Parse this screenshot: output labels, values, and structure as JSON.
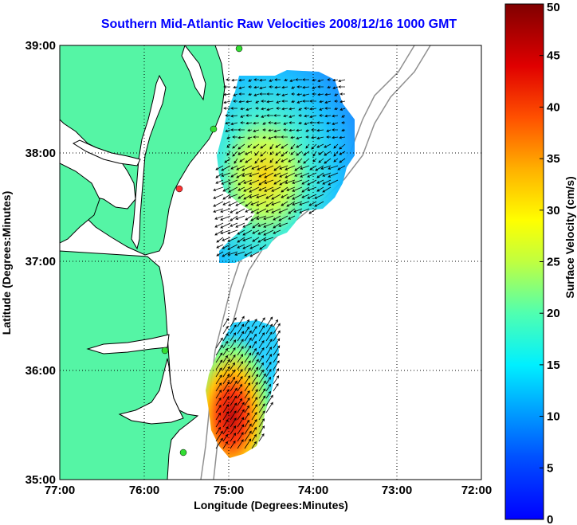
{
  "title": "Southern Mid-Atlantic Raw Velocities 2008/12/16 1000 GMT",
  "axes": {
    "xlabel": "Longitude (Degrees:Minutes)",
    "ylabel": "Latitude (Degrees:Minutes)",
    "x_ticks": [
      "77:00",
      "76:00",
      "75:00",
      "74:00",
      "73:00",
      "72:00"
    ],
    "y_ticks": [
      "39:00",
      "38:00",
      "37:00",
      "36:00",
      "35:00"
    ],
    "xlim": [
      -77,
      -72
    ],
    "ylim": [
      35,
      39
    ],
    "grid": "dotted"
  },
  "colorbar": {
    "label": "Surface Velocity (cm/s)",
    "ticks": [
      "50",
      "45",
      "40",
      "35",
      "30",
      "25",
      "20",
      "15",
      "10",
      "5",
      "0"
    ],
    "range": [
      0,
      50
    ],
    "colors": [
      "#0000ff",
      "#0050ff",
      "#00a0ff",
      "#00e8ff",
      "#40ffc0",
      "#a0ff60",
      "#f0ff00",
      "#ffb000",
      "#ff5000",
      "#e00000",
      "#800000"
    ]
  },
  "colors": {
    "land": "#55f5a5",
    "coast": "#000000",
    "bathymetry": "#909090",
    "title": "#0000ff",
    "stations": "#33dd33",
    "station_alert": "#ff3333"
  }
}
